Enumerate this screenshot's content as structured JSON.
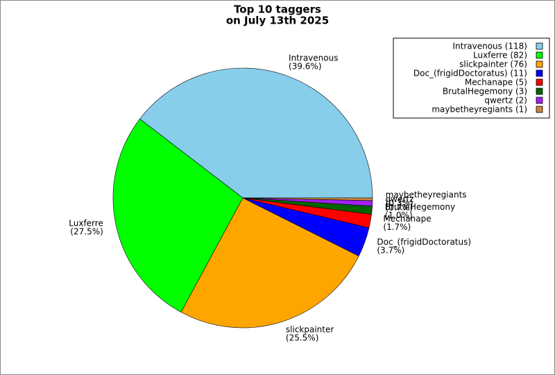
{
  "chart_data": {
    "type": "pie",
    "title": [
      "Top 10 taggers",
      "on July 13th 2025"
    ],
    "categories": [
      "Intravenous",
      "Luxferre",
      "slickpainter",
      "Doc_(frigidDoctoratus)",
      "Mechanape",
      "BrutalHegemony",
      "qwertz",
      "maybetheyregiants"
    ],
    "values": [
      118,
      82,
      76,
      11,
      5,
      3,
      2,
      1
    ],
    "value_labels": [
      "(39.6%)",
      "(27.5%)",
      "(25.5%)",
      "(3.7%)",
      "(1.7%)",
      "(1.0%)",
      "(0.7%)",
      "(0.3%)"
    ],
    "legend_labels": [
      "Intravenous (118)",
      "Luxferre (82)",
      "slickpainter (76)",
      "Doc_(frigidDoctoratus) (11)",
      "Mechanape (5)",
      "BrutalHegemony (3)",
      "qwertz (2)",
      "maybetheyregiants (1)"
    ],
    "colors": [
      "#87ceeb",
      "#00ff00",
      "#ffa500",
      "#0000ff",
      "#ff0000",
      "#006400",
      "#a020f0",
      "#cd853f"
    ],
    "legend": "upper right"
  }
}
